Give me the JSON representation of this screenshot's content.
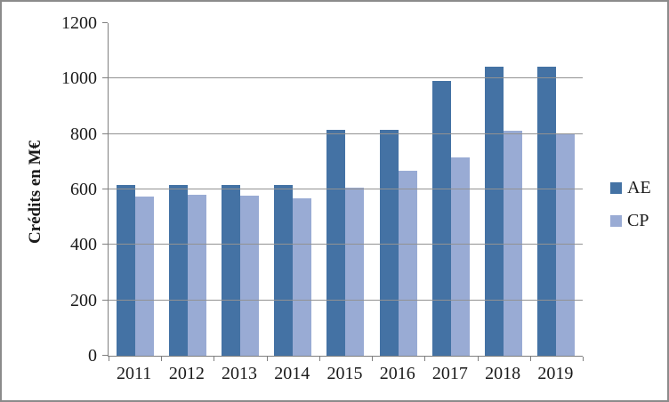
{
  "window": {
    "background": "#ffffff",
    "border_color": "#8b8b8b"
  },
  "colors": {
    "axis": "#7f7f7f",
    "gridline": "#929292",
    "text": "#1a1a1a"
  },
  "chart_data": {
    "type": "bar",
    "title": "",
    "xlabel": "",
    "ylabel": "Crédits en M€",
    "categories": [
      "2011",
      "2012",
      "2013",
      "2014",
      "2015",
      "2016",
      "2017",
      "2018",
      "2019"
    ],
    "series": [
      {
        "name": "AE",
        "color": "#4472a4",
        "values": [
          616,
          616,
          616,
          616,
          814,
          814,
          993,
          1044,
          1044
        ]
      },
      {
        "name": "CP",
        "color": "#99abd4",
        "values": [
          575,
          581,
          578,
          567,
          608,
          666,
          717,
          812,
          803
        ]
      }
    ],
    "ylim": [
      0,
      1200
    ],
    "ytick_interval": 200,
    "yticks": [
      "0",
      "200",
      "400",
      "600",
      "800",
      "1000",
      "1200"
    ],
    "grid": true,
    "legend_position": "right",
    "legend_entries": [
      "AE",
      "CP"
    ]
  }
}
